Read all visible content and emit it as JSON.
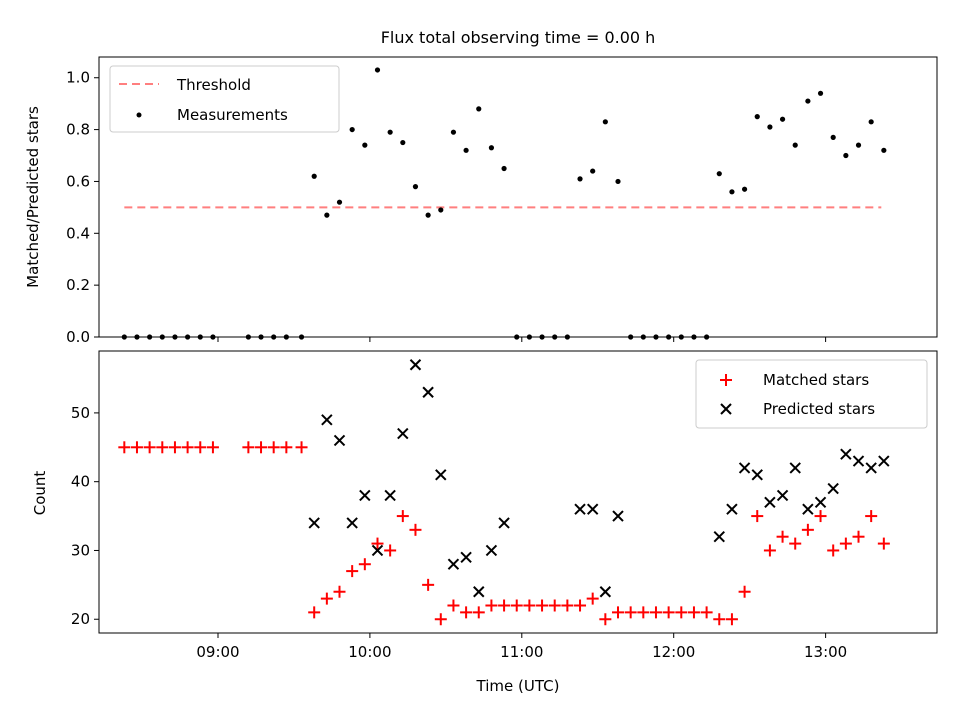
{
  "title": "Flux total observing time = 0.00 h",
  "colors": {
    "measurement": "#000000",
    "threshold": "#ff7f7f",
    "matched": "#ff0000",
    "predicted": "#000000"
  },
  "chart_data": [
    {
      "type": "scatter",
      "ylabel": "Matched/Predicted stars",
      "ylim": [
        0,
        1.08
      ],
      "yticks": [
        0.0,
        0.2,
        0.4,
        0.6,
        0.8,
        1.0
      ],
      "ytick_labels": [
        "0.0",
        "0.2",
        "0.4",
        "0.6",
        "0.8",
        "1.0"
      ],
      "xlim": [
        "08:13",
        "13:44"
      ],
      "legend": "top-left",
      "threshold": {
        "name": "Threshold",
        "y": 0.5,
        "x_start": "08:23",
        "x_end": "13:22"
      },
      "series": [
        {
          "name": "Measurements",
          "x": [
            "08:23",
            "08:28",
            "08:33",
            "08:38",
            "08:43",
            "08:48",
            "08:53",
            "08:58",
            "09:12",
            "09:17",
            "09:22",
            "09:27",
            "09:33",
            "09:38",
            "09:43",
            "09:48",
            "09:53",
            "09:58",
            "10:03",
            "10:08",
            "10:13",
            "10:18",
            "10:23",
            "10:28",
            "10:33",
            "10:38",
            "10:43",
            "10:48",
            "10:53",
            "10:58",
            "11:03",
            "11:08",
            "11:13",
            "11:18",
            "11:23",
            "11:28",
            "11:33",
            "11:38",
            "11:43",
            "11:48",
            "11:53",
            "11:58",
            "12:03",
            "12:08",
            "12:13",
            "12:18",
            "12:23",
            "12:28",
            "12:33",
            "12:38",
            "12:43",
            "12:48",
            "12:53",
            "12:58",
            "13:03",
            "13:08",
            "13:13",
            "13:18",
            "13:23"
          ],
          "y": [
            0,
            0,
            0,
            0,
            0,
            0,
            0,
            0,
            0,
            0,
            0,
            0,
            0,
            0.62,
            0.47,
            0.52,
            0.8,
            0.74,
            1.03,
            0.79,
            0.75,
            0.58,
            0.47,
            0.49,
            0.79,
            0.72,
            0.88,
            0.73,
            0.65,
            0,
            0,
            0,
            0,
            0,
            0.61,
            0.64,
            0.83,
            0.6,
            0,
            0,
            0,
            0,
            0,
            0,
            0,
            0.63,
            0.56,
            0.57,
            0.85,
            0.81,
            0.84,
            0.74,
            0.91,
            0.94,
            0.77,
            0.7,
            0.74,
            0.83,
            0.72
          ]
        }
      ]
    },
    {
      "type": "scatter",
      "xlabel": "Time (UTC)",
      "ylabel": "Count",
      "ylim": [
        18,
        59
      ],
      "yticks": [
        20,
        30,
        40,
        50
      ],
      "ytick_labels": [
        "20",
        "30",
        "40",
        "50"
      ],
      "xlim": [
        "08:13",
        "13:44"
      ],
      "xticks": [
        "09:00",
        "10:00",
        "11:00",
        "12:00",
        "13:00"
      ],
      "xtick_labels": [
        "09:00",
        "10:00",
        "11:00",
        "12:00",
        "13:00"
      ],
      "legend": "top-right",
      "series": [
        {
          "name": "Matched stars",
          "marker": "plus",
          "x": [
            "08:23",
            "08:28",
            "08:33",
            "08:38",
            "08:43",
            "08:48",
            "08:53",
            "08:58",
            "09:12",
            "09:17",
            "09:22",
            "09:27",
            "09:33",
            "09:38",
            "09:43",
            "09:48",
            "09:53",
            "09:58",
            "10:03",
            "10:08",
            "10:13",
            "10:18",
            "10:23",
            "10:28",
            "10:33",
            "10:38",
            "10:43",
            "10:48",
            "10:53",
            "10:58",
            "11:03",
            "11:08",
            "11:13",
            "11:18",
            "11:23",
            "11:28",
            "11:33",
            "11:38",
            "11:43",
            "11:48",
            "11:53",
            "11:58",
            "12:03",
            "12:08",
            "12:13",
            "12:18",
            "12:23",
            "12:28",
            "12:33",
            "12:38",
            "12:43",
            "12:48",
            "12:53",
            "12:58",
            "13:03",
            "13:08",
            "13:13",
            "13:18",
            "13:23"
          ],
          "y": [
            45,
            45,
            45,
            45,
            45,
            45,
            45,
            45,
            45,
            45,
            45,
            45,
            45,
            21,
            23,
            24,
            27,
            28,
            31,
            30,
            35,
            33,
            25,
            20,
            22,
            21,
            21,
            22,
            22,
            22,
            22,
            22,
            22,
            22,
            22,
            23,
            20,
            21,
            21,
            21,
            21,
            21,
            21,
            21,
            21,
            20,
            20,
            24,
            35,
            30,
            32,
            31,
            33,
            35,
            30,
            31,
            32,
            35,
            31
          ]
        },
        {
          "name": "Predicted stars",
          "marker": "x",
          "x": [
            "09:38",
            "09:43",
            "09:48",
            "09:53",
            "09:58",
            "10:03",
            "10:08",
            "10:13",
            "10:18",
            "10:23",
            "10:28",
            "10:33",
            "10:38",
            "10:43",
            "10:48",
            "10:53",
            "11:23",
            "11:28",
            "11:33",
            "11:38",
            "12:18",
            "12:23",
            "12:28",
            "12:33",
            "12:38",
            "12:43",
            "12:48",
            "12:53",
            "12:58",
            "13:03",
            "13:08",
            "13:13",
            "13:18",
            "13:23"
          ],
          "y": [
            34,
            49,
            46,
            34,
            38,
            30,
            38,
            47,
            57,
            53,
            41,
            28,
            29,
            24,
            30,
            34,
            36,
            36,
            24,
            35,
            32,
            36,
            42,
            41,
            37,
            38,
            42,
            36,
            37,
            39,
            44,
            43,
            42,
            43
          ]
        }
      ]
    }
  ]
}
